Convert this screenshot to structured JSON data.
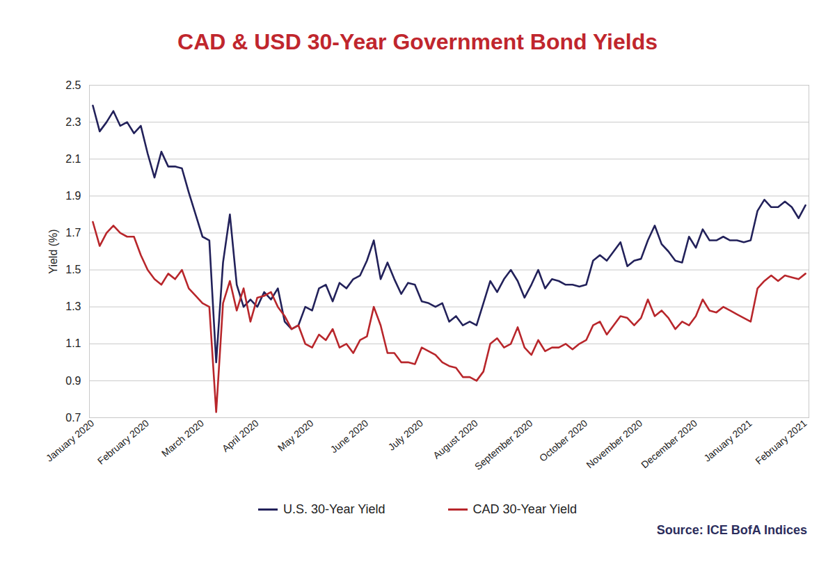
{
  "chart_data": {
    "type": "line",
    "title": "CAD & USD 30-Year Government Bond Yields",
    "y_label": "Yield (%)",
    "caption": "Source: ICE BofA Indices",
    "categories": [
      "January 2020",
      null,
      null,
      null,
      null,
      null,
      null,
      null,
      "February 2020",
      null,
      null,
      null,
      null,
      null,
      null,
      null,
      "March 2020",
      null,
      null,
      null,
      null,
      null,
      null,
      null,
      "April 2020",
      null,
      null,
      null,
      null,
      null,
      null,
      null,
      "May 2020",
      null,
      null,
      null,
      null,
      null,
      null,
      null,
      "June 2020",
      null,
      null,
      null,
      null,
      null,
      null,
      null,
      "July 2020",
      null,
      null,
      null,
      null,
      null,
      null,
      null,
      "August 2020",
      null,
      null,
      null,
      null,
      null,
      null,
      null,
      "September 2020",
      null,
      null,
      null,
      null,
      null,
      null,
      null,
      "October 2020",
      null,
      null,
      null,
      null,
      null,
      null,
      null,
      "November 2020",
      null,
      null,
      null,
      null,
      null,
      null,
      null,
      "December 2020",
      null,
      null,
      null,
      null,
      null,
      null,
      null,
      "January 2021",
      null,
      null,
      null,
      null,
      null,
      null,
      null,
      "February 2021"
    ],
    "series": [
      {
        "name": "U.S. 30-Year Yield",
        "color": "#22215a",
        "values": [
          2.39,
          2.25,
          2.3,
          2.36,
          2.28,
          2.3,
          2.24,
          2.28,
          2.13,
          2.0,
          2.14,
          2.06,
          2.06,
          2.05,
          1.92,
          1.8,
          1.68,
          1.66,
          1.0,
          1.54,
          1.8,
          1.42,
          1.3,
          1.34,
          1.3,
          1.38,
          1.34,
          1.4,
          1.22,
          1.18,
          1.2,
          1.3,
          1.28,
          1.4,
          1.42,
          1.33,
          1.43,
          1.4,
          1.45,
          1.47,
          1.55,
          1.66,
          1.45,
          1.54,
          1.45,
          1.37,
          1.43,
          1.42,
          1.33,
          1.32,
          1.3,
          1.32,
          1.22,
          1.25,
          1.2,
          1.22,
          1.2,
          1.32,
          1.44,
          1.38,
          1.45,
          1.5,
          1.44,
          1.35,
          1.42,
          1.5,
          1.4,
          1.45,
          1.44,
          1.42,
          1.42,
          1.41,
          1.42,
          1.55,
          1.58,
          1.55,
          1.6,
          1.65,
          1.52,
          1.55,
          1.56,
          1.66,
          1.74,
          1.64,
          1.6,
          1.55,
          1.54,
          1.68,
          1.62,
          1.72,
          1.66,
          1.66,
          1.68,
          1.66,
          1.66,
          1.65,
          1.66,
          1.82,
          1.88,
          1.84,
          1.84,
          1.87,
          1.84,
          1.78,
          1.85
        ]
      },
      {
        "name": "CAD 30-Year Yield",
        "color": "#b8262b",
        "values": [
          1.76,
          1.63,
          1.7,
          1.74,
          1.7,
          1.68,
          1.68,
          1.58,
          1.5,
          1.45,
          1.42,
          1.48,
          1.45,
          1.5,
          1.4,
          1.36,
          1.32,
          1.3,
          0.73,
          1.32,
          1.44,
          1.28,
          1.4,
          1.22,
          1.35,
          1.36,
          1.38,
          1.3,
          1.25,
          1.18,
          1.2,
          1.1,
          1.08,
          1.15,
          1.12,
          1.18,
          1.08,
          1.1,
          1.05,
          1.12,
          1.14,
          1.3,
          1.2,
          1.05,
          1.05,
          1.0,
          1.0,
          0.99,
          1.08,
          1.06,
          1.04,
          1.0,
          0.98,
          0.97,
          0.92,
          0.92,
          0.9,
          0.95,
          1.1,
          1.13,
          1.08,
          1.1,
          1.19,
          1.08,
          1.04,
          1.12,
          1.06,
          1.08,
          1.08,
          1.1,
          1.07,
          1.1,
          1.12,
          1.2,
          1.22,
          1.15,
          1.2,
          1.25,
          1.24,
          1.2,
          1.24,
          1.34,
          1.25,
          1.28,
          1.24,
          1.18,
          1.22,
          1.2,
          1.25,
          1.34,
          1.28,
          1.27,
          1.3,
          1.28,
          1.26,
          1.24,
          1.22,
          1.4,
          1.44,
          1.47,
          1.44,
          1.47,
          1.46,
          1.45,
          1.48
        ]
      }
    ],
    "ylim": [
      0.7,
      2.5
    ],
    "yticks": [
      0.7,
      0.9,
      1.1,
      1.3,
      1.5,
      1.7,
      1.9,
      2.1,
      2.3,
      2.5
    ],
    "grid": true,
    "legend": "bottom"
  }
}
